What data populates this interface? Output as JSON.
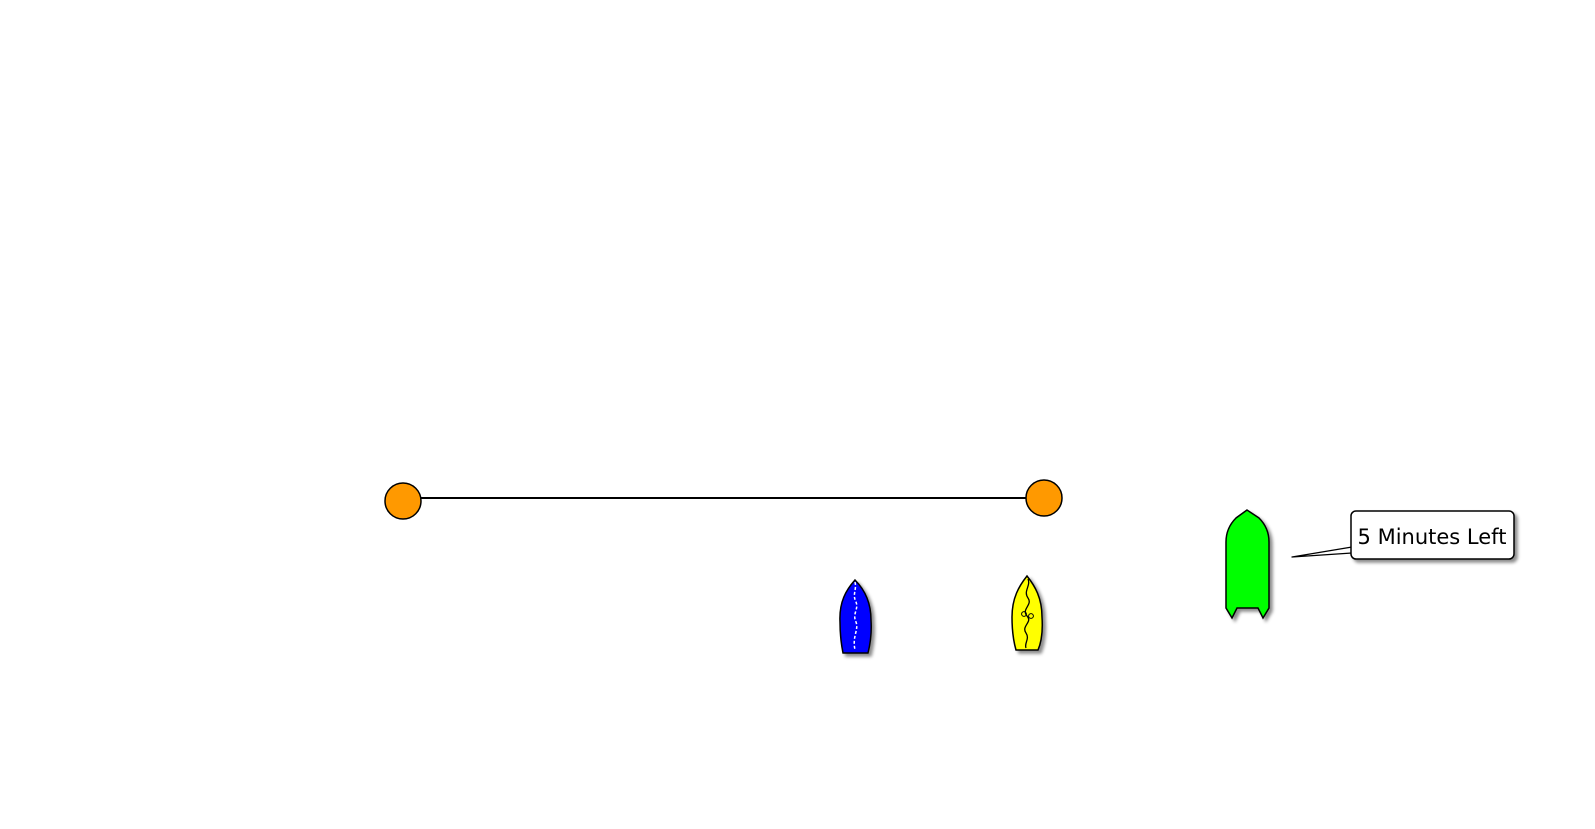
{
  "scene": {
    "background": "#ffffff",
    "start_line": {
      "color": "#000000",
      "marks": [
        {
          "name": "pin-end",
          "color": "#ff9900"
        },
        {
          "name": "committee-end",
          "color": "#ff9900"
        }
      ]
    },
    "boats": [
      {
        "name": "blue-boat",
        "color": "#0000ff",
        "type": "sailboat"
      },
      {
        "name": "yellow-boat",
        "color": "#ffff00",
        "type": "sailboat"
      },
      {
        "name": "green-committee-boat",
        "color": "#00ff00",
        "type": "motorboat"
      }
    ],
    "callout": {
      "text": "5 Minutes Left"
    }
  }
}
